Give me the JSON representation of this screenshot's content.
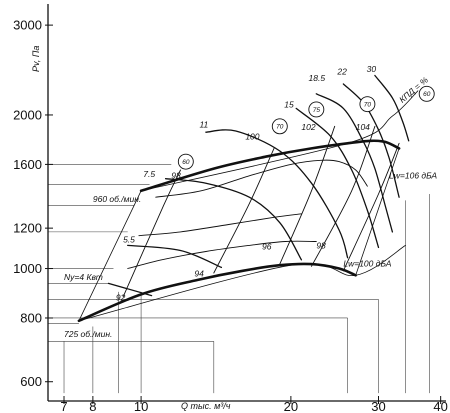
{
  "chart_data": {
    "type": "line",
    "title": "",
    "xlabel": "Q тыс. м³/ч",
    "ylabel": "Pv, Па",
    "x_scale": "log",
    "y_scale": "log",
    "xlim": [
      6.5,
      41
    ],
    "ylim": [
      550,
      3300
    ],
    "x_ticks": [
      7,
      8,
      10,
      20,
      30,
      40
    ],
    "y_ticks": [
      600,
      800,
      1000,
      1200,
      1600,
      2000,
      3000
    ],
    "grid": false,
    "legend": "none",
    "series": [
      {
        "name": "960 об./мин.",
        "kind": "main",
        "points": [
          [
            10,
            1420
          ],
          [
            14,
            1570
          ],
          [
            18,
            1660
          ],
          [
            22,
            1720
          ],
          [
            26,
            1760
          ],
          [
            29,
            1780
          ],
          [
            31,
            1770
          ],
          [
            33,
            1720
          ]
        ]
      },
      {
        "name": "725 об./мин.",
        "kind": "main",
        "points": [
          [
            7.5,
            790
          ],
          [
            10,
            890
          ],
          [
            13,
            950
          ],
          [
            16,
            990
          ],
          [
            19,
            1015
          ],
          [
            22,
            1020
          ],
          [
            25,
            1000
          ],
          [
            27,
            970
          ]
        ]
      },
      {
        "name": "",
        "kind": "speed",
        "points": [
          [
            7.5,
            790
          ],
          [
            10,
            1420
          ]
        ]
      },
      {
        "name": "",
        "kind": "speed",
        "points": [
          [
            33,
            1720
          ],
          [
            27,
            970
          ]
        ]
      },
      {
        "name": "",
        "kind": "speed",
        "points": [
          [
            10,
            1420
          ],
          [
            26,
            1760
          ],
          [
            32,
            1990
          ],
          [
            36,
            2230
          ]
        ]
      },
      {
        "name": "",
        "kind": "speed",
        "points": [
          [
            7.5,
            790
          ],
          [
            20,
            1015
          ],
          [
            27,
            970
          ],
          [
            34,
            1110
          ]
        ]
      },
      {
        "name": "Ny=4 Квт",
        "kind": "power",
        "points": [
          [
            8.6,
            935
          ],
          [
            10.5,
            885
          ]
        ]
      },
      {
        "name": "5.5",
        "kind": "power",
        "points": [
          [
            9.4,
            1110
          ],
          [
            12,
            1085
          ],
          [
            14.5,
            1005
          ]
        ]
      },
      {
        "name": "7.5",
        "kind": "power",
        "points": [
          [
            11.2,
            1500
          ],
          [
            13.5,
            1470
          ],
          [
            16.5,
            1380
          ],
          [
            19,
            1230
          ],
          [
            21,
            1040
          ]
        ]
      },
      {
        "name": "11",
        "kind": "power",
        "points": [
          [
            13.5,
            1850
          ],
          [
            15.5,
            1860
          ],
          [
            19,
            1700
          ],
          [
            22,
            1470
          ],
          [
            25,
            1190
          ],
          [
            26,
            1050
          ]
        ]
      },
      {
        "name": "15",
        "kind": "power",
        "points": [
          [
            20.5,
            2060
          ],
          [
            24,
            1820
          ],
          [
            26.5,
            1560
          ],
          [
            28.5,
            1300
          ],
          [
            30,
            1100
          ]
        ]
      },
      {
        "name": "18.5",
        "kind": "power",
        "points": [
          [
            22.5,
            2200
          ],
          [
            25.5,
            2060
          ],
          [
            28,
            1770
          ],
          [
            29.5,
            1570
          ],
          [
            31,
            1320
          ],
          [
            32,
            1180
          ]
        ]
      },
      {
        "name": "22",
        "kind": "power",
        "points": [
          [
            25.5,
            2300
          ],
          [
            28,
            2110
          ],
          [
            30,
            1870
          ],
          [
            31.5,
            1650
          ],
          [
            33,
            1380
          ]
        ]
      },
      {
        "name": "30",
        "kind": "power",
        "points": [
          [
            29.5,
            2390
          ],
          [
            32,
            2160
          ],
          [
            33.5,
            1950
          ],
          [
            34.5,
            1780
          ]
        ]
      },
      {
        "name": "",
        "kind": "efficiency",
        "points": [
          [
            9.2,
            880
          ],
          [
            11.1,
            1330
          ],
          [
            12,
            1560
          ]
        ]
      },
      {
        "name": "",
        "kind": "efficiency",
        "points": [
          [
            14,
            980
          ],
          [
            16.5,
            1340
          ],
          [
            18.5,
            1720
          ]
        ]
      },
      {
        "name": "",
        "kind": "efficiency",
        "points": [
          [
            19,
            1020
          ],
          [
            22,
            1420
          ],
          [
            24.5,
            1900
          ]
        ]
      },
      {
        "name": "",
        "kind": "efficiency",
        "points": [
          [
            22,
            1010
          ],
          [
            26.5,
            1420
          ],
          [
            29.5,
            1900
          ]
        ]
      },
      {
        "name": "",
        "kind": "efficiency",
        "points": [
          [
            25.5,
            990
          ],
          [
            30,
            1400
          ],
          [
            33,
            1760
          ]
        ]
      },
      {
        "name": "",
        "kind": "efficiency",
        "points": [
          [
            10.7,
            1380
          ],
          [
            13.2,
            1420
          ],
          [
            16.5,
            1520
          ],
          [
            20,
            1600
          ],
          [
            23,
            1630
          ],
          [
            25,
            1620
          ],
          [
            27,
            1560
          ],
          [
            28.5,
            1450
          ]
        ]
      },
      {
        "name": "",
        "kind": "efficiency",
        "points": [
          [
            9.9,
            1160
          ],
          [
            12,
            1180
          ],
          [
            15,
            1220
          ],
          [
            18.5,
            1260
          ],
          [
            21,
            1280
          ]
        ]
      },
      {
        "name": "",
        "kind": "efficiency",
        "points": [
          [
            9.4,
            1000
          ],
          [
            11,
            1040
          ],
          [
            13.5,
            1080
          ],
          [
            16.5,
            1110
          ],
          [
            19.5,
            1130
          ],
          [
            22.5,
            1130
          ]
        ]
      }
    ],
    "annotations": [
      {
        "text": "7.5",
        "x": 10.1,
        "y": 1510
      },
      {
        "text": "5.5",
        "x": 9.2,
        "y": 1125
      },
      {
        "text": "11",
        "x": 13.1,
        "y": 1890
      },
      {
        "text": "15",
        "x": 19.4,
        "y": 2070
      },
      {
        "text": "18.5",
        "x": 21.7,
        "y": 2330
      },
      {
        "text": "22",
        "x": 24.8,
        "y": 2400
      },
      {
        "text": "30",
        "x": 28.4,
        "y": 2430
      },
      {
        "text": "Ny=4 Квт",
        "x": 7,
        "y": 950
      },
      {
        "text": "960 об./мин.",
        "x": 8,
        "y": 1350
      },
      {
        "text": "725 об./мин.",
        "x": 7,
        "y": 735
      },
      {
        "text": "Lw=106 дБА",
        "x": 31.5,
        "y": 1500
      },
      {
        "text": "Lw=100 дБА",
        "x": 25.5,
        "y": 1010
      },
      {
        "text": "КПД = %",
        "x": 33.5,
        "y": 2110
      },
      {
        "text": "98",
        "x": 11.5,
        "y": 1500
      },
      {
        "text": "100",
        "x": 16.2,
        "y": 1790
      },
      {
        "text": "102",
        "x": 21,
        "y": 1870
      },
      {
        "text": "104",
        "x": 27,
        "y": 1870
      },
      {
        "text": "96",
        "x": 17.5,
        "y": 1090
      },
      {
        "text": "98",
        "x": 22.5,
        "y": 1095
      },
      {
        "text": "94",
        "x": 12.8,
        "y": 965
      },
      {
        "text": "92",
        "x": 8.9,
        "y": 865
      }
    ],
    "efficiency_markers": [
      {
        "text": "60",
        "x": 12.3,
        "y": 1620
      },
      {
        "text": "70",
        "x": 19,
        "y": 1900
      },
      {
        "text": "75",
        "x": 22.5,
        "y": 2050
      },
      {
        "text": "70",
        "x": 28.5,
        "y": 2100
      },
      {
        "text": "60",
        "x": 37.5,
        "y": 2200
      }
    ],
    "reference_lines": {
      "h": [
        {
          "y": 1600,
          "x_to": 11.5
        },
        {
          "y": 1460,
          "x_to": 10.4
        },
        {
          "y": 1330,
          "x_to": 9.7
        },
        {
          "y": 1180,
          "x_to": 9.4
        },
        {
          "y": 1000,
          "x_to": 8.8
        },
        {
          "y": 935,
          "x_to": 8.6
        },
        {
          "y": 780,
          "x_to": 7.5
        },
        {
          "y": 720,
          "x_to": 14
        },
        {
          "y": 800,
          "x_to": 26
        },
        {
          "y": 870,
          "x_to": 30
        }
      ],
      "v": [
        {
          "x": 7,
          "y_from": 570,
          "y_to": 720
        },
        {
          "x": 8,
          "y_from": 570,
          "y_to": 770
        },
        {
          "x": 9,
          "y_from": 570,
          "y_to": 900
        },
        {
          "x": 10,
          "y_from": 570,
          "y_to": 900
        },
        {
          "x": 14,
          "y_from": 570,
          "y_to": 720
        },
        {
          "x": 26,
          "y_from": 570,
          "y_to": 800
        },
        {
          "x": 30,
          "y_from": 570,
          "y_to": 870
        },
        {
          "x": 34,
          "y_from": 570,
          "y_to": 1360
        },
        {
          "x": 38,
          "y_from": 570,
          "y_to": 1400
        }
      ]
    },
    "colors": {
      "line": "#111111",
      "guide": "#444444",
      "background": "#ffffff"
    }
  }
}
